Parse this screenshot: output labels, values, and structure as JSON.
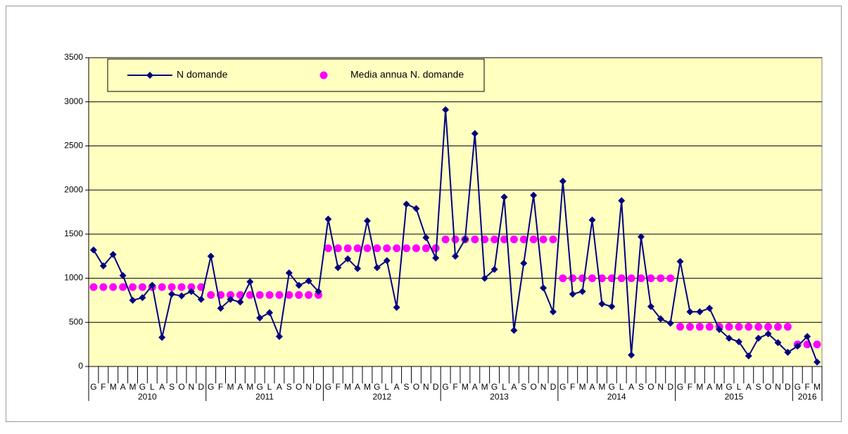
{
  "chart_data": {
    "type": "line",
    "categories": [
      "G",
      "F",
      "M",
      "A",
      "M",
      "G",
      "L",
      "A",
      "S",
      "O",
      "N",
      "D",
      "G",
      "F",
      "M",
      "A",
      "M",
      "G",
      "L",
      "A",
      "S",
      "O",
      "N",
      "D",
      "G",
      "F",
      "M",
      "A",
      "M",
      "G",
      "L",
      "A",
      "S",
      "O",
      "N",
      "D",
      "G",
      "F",
      "M",
      "A",
      "M",
      "G",
      "L",
      "A",
      "S",
      "O",
      "N",
      "D",
      "G",
      "F",
      "M",
      "A",
      "M",
      "G",
      "L",
      "A",
      "S",
      "O",
      "N",
      "D",
      "G",
      "F",
      "M",
      "A",
      "M",
      "G",
      "L",
      "A",
      "S",
      "O",
      "N",
      "D",
      "G",
      "F",
      "M"
    ],
    "years": [
      "2010",
      "2011",
      "2012",
      "2013",
      "2014",
      "2015",
      "2016"
    ],
    "series": [
      {
        "name": "N domande",
        "color": "#000080",
        "line": true,
        "marker": "diamond",
        "values": [
          1320,
          1140,
          1270,
          1030,
          750,
          780,
          920,
          330,
          820,
          800,
          850,
          760,
          1250,
          660,
          760,
          730,
          960,
          550,
          610,
          340,
          1060,
          920,
          970,
          850,
          1670,
          1120,
          1220,
          1110,
          1650,
          1120,
          1200,
          670,
          1840,
          1790,
          1460,
          1230,
          2910,
          1250,
          1440,
          2640,
          1000,
          1100,
          1920,
          410,
          1170,
          1940,
          890,
          620,
          2100,
          820,
          850,
          1660,
          710,
          680,
          1880,
          130,
          1470,
          680,
          540,
          490,
          1190,
          620,
          620,
          660,
          420,
          320,
          280,
          120,
          320,
          370,
          270,
          160,
          230,
          340,
          50
        ]
      },
      {
        "name": "Media annua N. domande",
        "color": "#ff00ff",
        "line": false,
        "marker": "circle",
        "values": [
          900,
          900,
          900,
          900,
          900,
          900,
          900,
          900,
          900,
          900,
          900,
          900,
          810,
          810,
          810,
          810,
          810,
          810,
          810,
          810,
          810,
          810,
          810,
          810,
          1340,
          1340,
          1340,
          1340,
          1340,
          1340,
          1340,
          1340,
          1340,
          1340,
          1340,
          1340,
          1440,
          1440,
          1440,
          1440,
          1440,
          1440,
          1440,
          1440,
          1440,
          1440,
          1440,
          1440,
          1000,
          1000,
          1000,
          1000,
          1000,
          1000,
          1000,
          1000,
          1000,
          1000,
          1000,
          1000,
          450,
          450,
          450,
          450,
          450,
          450,
          450,
          450,
          450,
          450,
          450,
          450,
          250,
          250,
          250
        ]
      }
    ],
    "ylim": [
      0,
      3500
    ],
    "yticks": [
      0,
      500,
      1000,
      1500,
      2000,
      2500,
      3000,
      3500
    ],
    "grid": true,
    "legend": "top-left",
    "background": "#ffffc0"
  }
}
